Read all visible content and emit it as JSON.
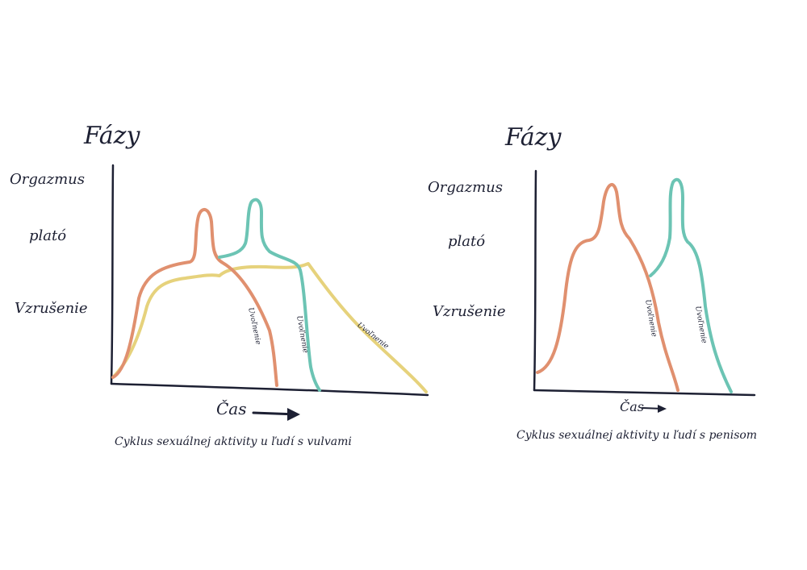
{
  "colors": {
    "ink": "#1d2033",
    "salmon": "#e0906f",
    "teal": "#6cc4b4",
    "yellow": "#e6d27c"
  },
  "left_diagram": {
    "y_title": "Fázy",
    "phases": [
      "Orgazmus",
      "plató",
      "Vzrušenie"
    ],
    "x_label": "Čas",
    "arrow": "→",
    "caption": "Cyklus sexuálnej aktivity u ľudí s vulvami",
    "curve_labels": [
      "Uvoľnenie",
      "Uvoľnenie",
      "Uvoľnenie"
    ]
  },
  "right_diagram": {
    "y_title": "Fázy",
    "phases": [
      "Orgazmus",
      "plató",
      "Vzrušenie"
    ],
    "x_label": "Čas",
    "arrow": "→",
    "caption": "Cyklus sexuálnej aktivity u ľudí s penisom",
    "curve_labels": [
      "Uvoľnenie",
      "Uvoľnenie"
    ]
  }
}
